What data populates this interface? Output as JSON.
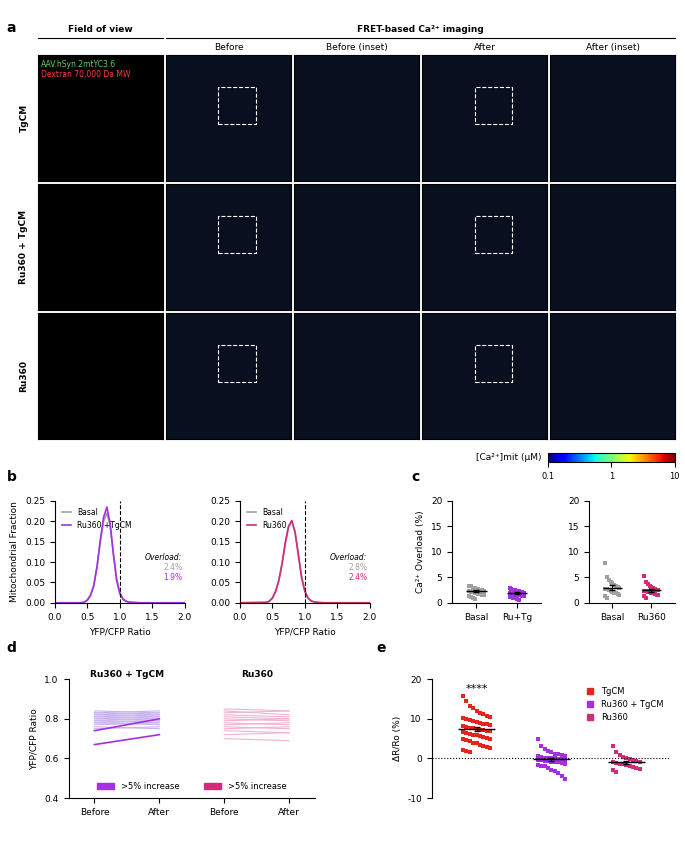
{
  "panel_a": {
    "label": "a",
    "headers": [
      "Field of view",
      "FRET-based Ca²⁺ imaging"
    ],
    "columns": [
      "Before",
      "Before (inset)",
      "After",
      "After (inset)"
    ],
    "rows": [
      "TgCM",
      "Ru360 + TgCM",
      "Ru360"
    ],
    "stains": [
      {
        "text": "AAV.hSyn.2mtYC3.6",
        "color": "#5fd35f"
      },
      {
        "text": "Dextran 70,000 Da MW",
        "color": "#ff3b3b"
      }
    ],
    "colorbar": {
      "label": "[Ca²⁺]mit (μM)",
      "range": [
        0.1,
        10
      ],
      "ticks": [
        0.1,
        1,
        10
      ]
    }
  },
  "chart_data": [
    {
      "panel": "b",
      "type": "line",
      "x": [
        0,
        0.4,
        0.45,
        0.5,
        0.55,
        0.6,
        0.65,
        0.7,
        0.75,
        0.8,
        0.85,
        0.9,
        0.95,
        1.0,
        1.05,
        1.1,
        1.15,
        1.2,
        1.3,
        1.5,
        2.0
      ],
      "series": [
        {
          "name": "Basal",
          "color": "#a0a0a0",
          "overload": "2.4%",
          "values": [
            0,
            0.0,
            0.002,
            0.008,
            0.02,
            0.045,
            0.09,
            0.15,
            0.2,
            0.22,
            0.19,
            0.12,
            0.06,
            0.025,
            0.01,
            0.004,
            0.002,
            0.001,
            0,
            0,
            0
          ]
        },
        {
          "name": "Ru360 +TgCM",
          "color": "#a530e0",
          "overload": "1.9%",
          "values": [
            0,
            0,
            0.001,
            0.006,
            0.018,
            0.042,
            0.09,
            0.155,
            0.21,
            0.235,
            0.195,
            0.12,
            0.055,
            0.022,
            0.008,
            0.003,
            0.001,
            0.001,
            0,
            0,
            0
          ]
        }
      ],
      "overload_title": "Overload:",
      "threshold": 1.0,
      "xlim": [
        0,
        2.0
      ],
      "xticks": [
        {
          "value": 0,
          "label": "0.0"
        },
        0.5,
        1.0,
        1.5,
        2.0
      ],
      "ylim": [
        0,
        0.25
      ],
      "yticks": [
        {
          "value": 0,
          "label": "0.00"
        },
        0.05,
        {
          "value": 0.1,
          "label": "0.10"
        },
        0.15,
        {
          "value": 0.2,
          "label": "0.20"
        },
        0.25
      ],
      "xlabel": "YFP/CFP Ratio",
      "ylabel": "Mitochondrial Fraction",
      "legend": "upper left"
    },
    {
      "type": "line",
      "x": [
        0,
        0.4,
        0.45,
        0.5,
        0.55,
        0.6,
        0.65,
        0.7,
        0.75,
        0.8,
        0.85,
        0.9,
        0.95,
        1.0,
        1.05,
        1.1,
        1.15,
        1.2,
        1.3,
        1.5,
        2.0
      ],
      "series": [
        {
          "name": "Basal",
          "color": "#a0a0a0",
          "overload": "2.8%",
          "values": [
            0,
            0.001,
            0.004,
            0.012,
            0.028,
            0.055,
            0.095,
            0.145,
            0.185,
            0.2,
            0.175,
            0.12,
            0.065,
            0.03,
            0.012,
            0.005,
            0.002,
            0.001,
            0,
            0,
            0
          ]
        },
        {
          "name": "Ru360",
          "color": "#d42a7a",
          "overload": "2.4%",
          "values": [
            0,
            0.001,
            0.003,
            0.011,
            0.027,
            0.054,
            0.096,
            0.148,
            0.188,
            0.202,
            0.172,
            0.118,
            0.062,
            0.028,
            0.011,
            0.004,
            0.002,
            0.001,
            0,
            0,
            0
          ]
        }
      ],
      "overload_title": "Overload:",
      "threshold": 1.0,
      "xlim": [
        0,
        2.0
      ],
      "xticks": [
        {
          "value": 0,
          "label": "0.0"
        },
        0.5,
        1.0,
        1.5,
        2.0
      ],
      "ylim": [
        0,
        0.25
      ],
      "yticks": [
        {
          "value": 0,
          "label": "0.00"
        },
        0.05,
        {
          "value": 0.1,
          "label": "0.10"
        },
        0.15,
        {
          "value": 0.2,
          "label": "0.20"
        },
        0.25
      ],
      "xlabel": "YFP/CFP Ratio",
      "legend": "upper left"
    },
    {
      "panel": "c",
      "type": "dot",
      "categories": [
        "Basal",
        "Ru+Tg"
      ],
      "colors": [
        "#a0a0a0",
        "#a530e0"
      ],
      "points": [
        [
          3.3,
          3.2,
          3.0,
          2.9,
          2.8,
          2.7,
          2.6,
          2.5,
          2.4,
          2.3,
          2.2,
          2.1,
          2.0,
          1.9,
          1.8,
          1.7,
          1.6,
          1.5,
          1.4,
          1.2,
          1.0,
          0.8
        ],
        [
          3.0,
          2.8,
          2.6,
          2.5,
          2.4,
          2.3,
          2.2,
          2.1,
          2.0,
          1.9,
          1.9,
          1.8,
          1.7,
          1.6,
          1.5,
          1.5,
          1.4,
          1.3,
          1.2,
          1.1,
          1.0,
          0.9,
          0.8,
          0.6
        ]
      ],
      "means": [
        2.3,
        1.9
      ],
      "sems": [
        0.2,
        0.15
      ],
      "ylim": [
        0,
        20
      ],
      "yticks": [
        0,
        5,
        10,
        15,
        20
      ],
      "ylabel": "Ca²⁺ Overload (%)"
    },
    {
      "type": "dot",
      "categories": [
        "Basal",
        "Ru360"
      ],
      "colors": [
        "#a0a0a0",
        "#d42a7a"
      ],
      "points": [
        [
          7.8,
          5.0,
          4.5,
          4.0,
          3.8,
          3.5,
          3.3,
          3.1,
          3.0,
          2.8,
          2.7,
          2.5,
          2.4,
          2.2,
          2.0,
          1.9,
          1.7,
          1.5,
          1.3,
          1.0
        ],
        [
          5.2,
          4.0,
          3.6,
          3.3,
          3.1,
          2.9,
          2.8,
          2.6,
          2.5,
          2.4,
          2.3,
          2.2,
          2.1,
          2.0,
          1.9,
          1.8,
          1.6,
          1.5,
          1.3,
          1.0
        ]
      ],
      "means": [
        3.0,
        2.5
      ],
      "sems": [
        0.4,
        0.3
      ],
      "ylim": [
        0,
        20
      ],
      "yticks": [
        0,
        5,
        10,
        15,
        20
      ]
    },
    {
      "panel": "d",
      "type": "paired",
      "categories": [
        "Before",
        "After",
        "Before",
        "After"
      ],
      "groups": [
        {
          "name": "Ru360 + TgCM",
          "color": "#c9b3ee",
          "highlight_color": "#a530e0",
          "before": [
            0.67,
            0.74,
            0.76,
            0.77,
            0.78,
            0.78,
            0.79,
            0.79,
            0.8,
            0.8,
            0.81,
            0.81,
            0.82,
            0.82,
            0.83,
            0.83,
            0.84,
            0.75
          ],
          "after": [
            0.72,
            0.8,
            0.75,
            0.78,
            0.77,
            0.79,
            0.78,
            0.8,
            0.79,
            0.81,
            0.8,
            0.82,
            0.81,
            0.83,
            0.82,
            0.84,
            0.83,
            0.76
          ],
          "highlight": [
            true,
            true,
            false,
            false,
            false,
            false,
            false,
            false,
            false,
            false,
            false,
            false,
            false,
            false,
            false,
            false,
            false,
            false
          ]
        },
        {
          "name": "Ru360",
          "color": "#f0b3cf",
          "highlight_color": "#d42a7a",
          "before": [
            0.7,
            0.72,
            0.74,
            0.75,
            0.76,
            0.77,
            0.78,
            0.79,
            0.8,
            0.81,
            0.82,
            0.83,
            0.84,
            0.85
          ],
          "after": [
            0.69,
            0.73,
            0.73,
            0.76,
            0.75,
            0.78,
            0.77,
            0.8,
            0.79,
            0.8,
            0.81,
            0.84,
            0.82,
            0.84
          ],
          "highlight": [
            false,
            false,
            false,
            false,
            false,
            false,
            false,
            false,
            false,
            false,
            false,
            false,
            false,
            false
          ]
        }
      ],
      "highlight_label": ">5% increase",
      "legend": "lower center",
      "ylim": [
        0.4,
        1.0
      ],
      "yticks": [
        0.4,
        0.6,
        0.8,
        1.0
      ],
      "ylabel": "YFP/CFP Ratio"
    },
    {
      "panel": "e",
      "type": "dot",
      "categories": [
        "TgCM",
        "Ru360 + TgCM",
        "Ru360"
      ],
      "colors": [
        "#e8221c",
        "#a530e0",
        "#d42a7a"
      ],
      "points": [
        [
          15.8,
          14.5,
          13.2,
          12.8,
          12.0,
          11.5,
          11.2,
          10.8,
          10.5,
          10.2,
          10.0,
          9.8,
          9.5,
          9.2,
          9.0,
          8.8,
          8.6,
          8.4,
          8.2,
          8.0,
          7.8,
          7.6,
          7.5,
          7.3,
          7.1,
          7.0,
          6.8,
          6.6,
          6.4,
          6.2,
          6.0,
          5.8,
          5.6,
          5.4,
          5.2,
          5.0,
          4.8,
          4.6,
          4.4,
          4.0,
          3.8,
          3.5,
          3.2,
          3.0,
          2.6,
          2.2,
          1.8,
          1.5
        ],
        [
          4.8,
          3.2,
          2.5,
          2.0,
          1.6,
          1.2,
          1.0,
          0.8,
          0.6,
          0.5,
          0.3,
          0.2,
          0.1,
          0.0,
          0.0,
          -0.1,
          -0.2,
          -0.3,
          -0.4,
          -0.5,
          -0.6,
          -0.7,
          -0.8,
          -0.9,
          -1.0,
          -1.2,
          -1.4,
          -1.6,
          -1.8,
          -2.0,
          -2.4,
          -2.8,
          -3.2,
          -3.8,
          -4.5,
          -5.2
        ],
        [
          3.2,
          1.5,
          0.8,
          0.4,
          0.1,
          -0.2,
          -0.4,
          -0.6,
          -0.8,
          -1.0,
          -1.1,
          -1.3,
          -1.5,
          -1.7,
          -1.9,
          -2.1,
          -2.4,
          -2.7,
          -3.0,
          -3.5
        ]
      ],
      "means": [
        7.5,
        -0.2,
        -1.0
      ],
      "sems": [
        0.5,
        0.35,
        0.35
      ],
      "significance": [
        {
          "index": 0,
          "label": "****"
        }
      ],
      "reference_line": 0,
      "ylim": [
        -10,
        20
      ],
      "yticks": [
        -10,
        0,
        10,
        20
      ],
      "ylabel": "ΔR/Ro (%)",
      "tick_labels": "y",
      "legend": "upper right"
    }
  ]
}
